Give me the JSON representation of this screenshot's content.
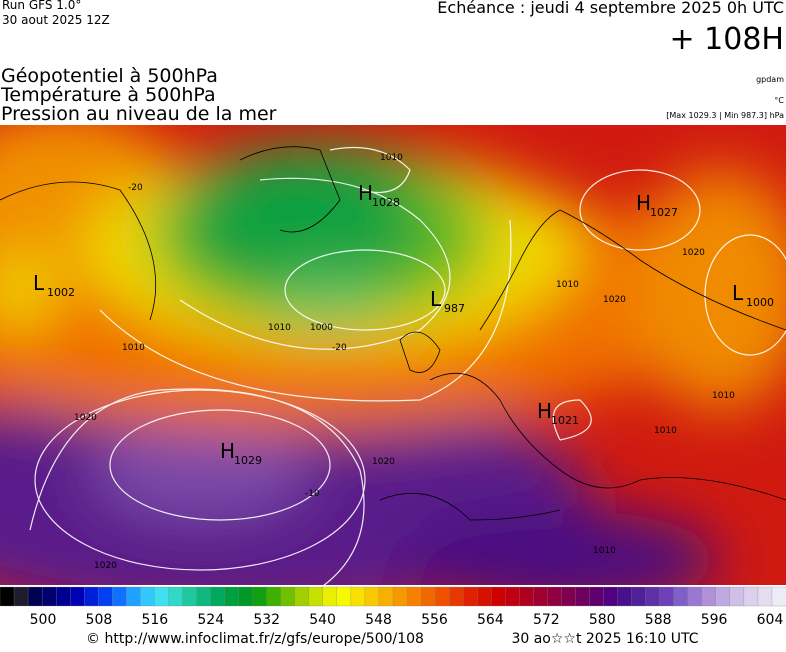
{
  "header": {
    "run": "Run GFS 1.0°",
    "run_date": "30 aout 2025 12Z",
    "echeance": "Echéance : jeudi 4 septembre 2025 0h UTC",
    "lead": "+ 108H",
    "titles": [
      "Géopotentiel à 500hPa",
      "Température à 500hPa",
      "Pression au niveau de la mer"
    ],
    "unit_geo": "gpdam",
    "unit_temp": "°C",
    "range": "[Max 1029.3 | Min 987.3] hPa"
  },
  "centers": [
    {
      "letter": "L",
      "value": 1002
    },
    {
      "letter": "H",
      "value": 1028
    },
    {
      "letter": "L",
      "value": 987
    },
    {
      "letter": "H",
      "value": 1027
    },
    {
      "letter": "L",
      "value": 1000
    },
    {
      "letter": "H",
      "value": 1021
    },
    {
      "letter": "H",
      "value": 1029
    }
  ],
  "contour_labels": [
    "1010",
    "1010",
    "1000",
    "-20",
    "1010",
    "1020",
    "1020",
    "-10",
    "1020",
    "1010",
    "1020",
    "1020",
    "1010",
    "1010",
    "-20",
    "1010"
  ],
  "colorbar": {
    "labels": [
      500,
      508,
      516,
      524,
      532,
      540,
      548,
      556,
      564,
      572,
      580,
      588,
      596,
      604
    ],
    "colors": [
      "#000000",
      "#1c1c2c",
      "#000050",
      "#00006e",
      "#000090",
      "#0000b4",
      "#0020d8",
      "#0040f0",
      "#1070ff",
      "#20a0ff",
      "#30c8ff",
      "#40e0f0",
      "#30d8c8",
      "#20c8a0",
      "#10b880",
      "#00a860",
      "#00a040",
      "#009828",
      "#10a010",
      "#40b000",
      "#70c000",
      "#a0d000",
      "#c8e000",
      "#e8f000",
      "#f8f800",
      "#f8e000",
      "#f8c800",
      "#f8b000",
      "#f89800",
      "#f88000",
      "#f06800",
      "#f05000",
      "#e83800",
      "#e02000",
      "#d81000",
      "#d00000",
      "#c00010",
      "#b00020",
      "#a00030",
      "#900040",
      "#800050",
      "#700060",
      "#600070",
      "#500080",
      "#48108c",
      "#502098",
      "#6030a8",
      "#7040b8",
      "#8060c8",
      "#9878d0",
      "#b090d8",
      "#c0a8e0",
      "#d0c0e8",
      "#dcd0ec",
      "#e4dcf0",
      "#ececf4"
    ]
  },
  "footer": {
    "url": "© http://www.infoclimat.fr/z/gfs/europe/500/108",
    "date": "30 ao☆☆t 2025 16:10 UTC"
  }
}
